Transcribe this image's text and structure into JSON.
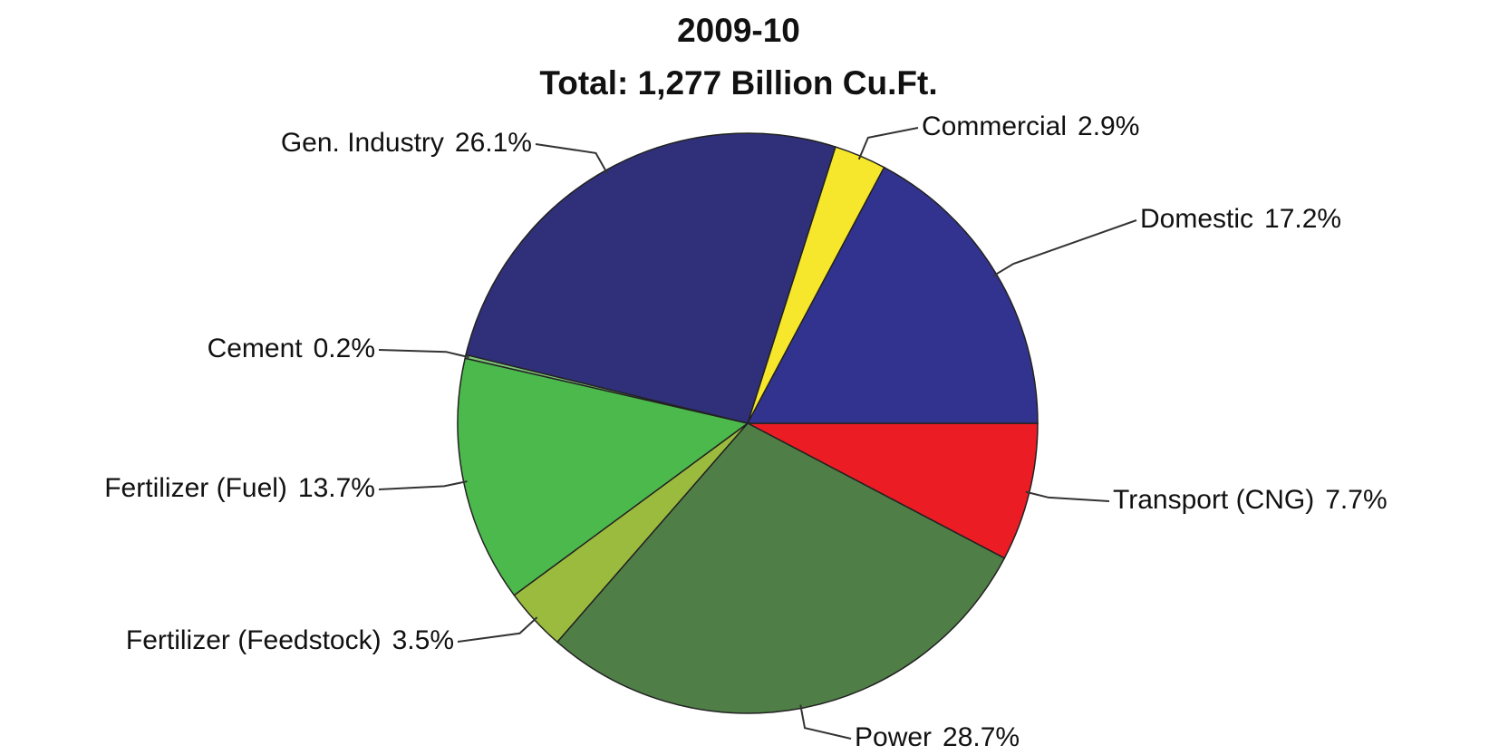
{
  "chart_data": {
    "type": "pie",
    "title": "2009-10",
    "subtitle": "Total: 1,277 Billion Cu.Ft.",
    "categories": [
      "Transport (CNG)",
      "Power",
      "Fertilizer (Feedstock)",
      "Fertilizer (Fuel)",
      "Cement",
      "Gen. Industry",
      "Commercial",
      "Domestic"
    ],
    "values": [
      7.7,
      28.7,
      3.5,
      13.7,
      0.2,
      26.1,
      2.9,
      17.2
    ],
    "value_labels": [
      "7.7%",
      "28.7%",
      "3.5%",
      "13.7%",
      "0.2%",
      "26.1%",
      "2.9%",
      "17.2%"
    ],
    "colors": [
      "#ec1c24",
      "#4f7f47",
      "#9bbb3e",
      "#4cb94c",
      "#7fc27a",
      "#30307a",
      "#f6e72c",
      "#32338f"
    ]
  }
}
